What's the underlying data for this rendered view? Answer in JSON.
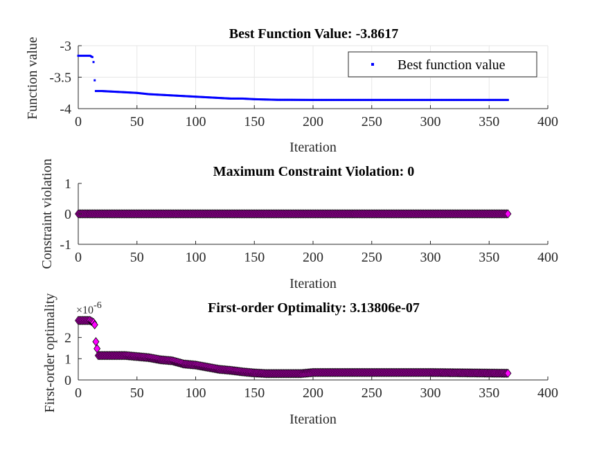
{
  "chart_data": [
    {
      "type": "scatter",
      "title": "Best Function Value: -3.8617",
      "xlabel": "Iteration",
      "ylabel": "Function value",
      "xlim": [
        0,
        400
      ],
      "ylim": [
        -4,
        -3
      ],
      "xticks": [
        "0",
        "50",
        "100",
        "150",
        "200",
        "250",
        "300",
        "350",
        "400"
      ],
      "yticks": [
        "-4",
        "-3.5",
        "-3"
      ],
      "grid": true,
      "legend": {
        "position": "top-right",
        "entries": [
          "Best function value"
        ]
      },
      "marker": "point",
      "series_color": "#0000ff",
      "series": [
        {
          "name": "Best function value",
          "points": [
            [
              0,
              -3.16
            ],
            [
              10,
              -3.16
            ],
            [
              12,
              -3.18
            ],
            [
              13,
              -3.26
            ],
            [
              14,
              -3.55
            ],
            [
              15,
              -3.72
            ],
            [
              20,
              -3.72
            ],
            [
              30,
              -3.73
            ],
            [
              40,
              -3.74
            ],
            [
              50,
              -3.75
            ],
            [
              60,
              -3.77
            ],
            [
              70,
              -3.78
            ],
            [
              80,
              -3.79
            ],
            [
              90,
              -3.8
            ],
            [
              100,
              -3.81
            ],
            [
              110,
              -3.82
            ],
            [
              120,
              -3.83
            ],
            [
              130,
              -3.84
            ],
            [
              140,
              -3.84
            ],
            [
              150,
              -3.85
            ],
            [
              160,
              -3.855
            ],
            [
              170,
              -3.86
            ],
            [
              180,
              -3.86
            ],
            [
              190,
              -3.861
            ],
            [
              200,
              -3.8617
            ],
            [
              250,
              -3.8617
            ],
            [
              300,
              -3.8617
            ],
            [
              366,
              -3.8617
            ]
          ]
        }
      ]
    },
    {
      "type": "scatter",
      "title": "Maximum Constraint Violation: 0",
      "xlabel": "Iteration",
      "ylabel": "Constraint violation",
      "xlim": [
        0,
        400
      ],
      "ylim": [
        -1,
        1
      ],
      "xticks": [
        "0",
        "50",
        "100",
        "150",
        "200",
        "250",
        "300",
        "350",
        "400"
      ],
      "yticks": [
        "-1",
        "0",
        "1"
      ],
      "grid": false,
      "marker": "diamond",
      "marker_fill": "#ff00ff",
      "marker_edge": "#000000",
      "series": [
        {
          "points": [
            [
              0,
              0
            ],
            [
              366,
              0
            ]
          ]
        }
      ]
    },
    {
      "type": "scatter",
      "title": "First-order Optimality: 3.13806e-07",
      "xlabel": "Iteration",
      "ylabel": "First-order optimality",
      "xlim": [
        0,
        400
      ],
      "ylim": [
        0,
        2.9
      ],
      "yscale_note": "×10^-6",
      "exponent_base": "×10",
      "exponent_power": "-6",
      "xticks": [
        "0",
        "50",
        "100",
        "150",
        "200",
        "250",
        "300",
        "350",
        "400"
      ],
      "yticks": [
        "0",
        "1",
        "2"
      ],
      "grid": false,
      "marker": "diamond",
      "marker_fill": "#ff00ff",
      "marker_edge": "#000000",
      "series": [
        {
          "points": [
            [
              0,
              2.8
            ],
            [
              10,
              2.8
            ],
            [
              13,
              2.7
            ],
            [
              14,
              2.6
            ],
            [
              15,
              1.8
            ],
            [
              17,
              1.15
            ],
            [
              30,
              1.15
            ],
            [
              40,
              1.15
            ],
            [
              50,
              1.1
            ],
            [
              60,
              1.05
            ],
            [
              70,
              0.95
            ],
            [
              80,
              0.9
            ],
            [
              90,
              0.75
            ],
            [
              100,
              0.7
            ],
            [
              110,
              0.6
            ],
            [
              120,
              0.5
            ],
            [
              130,
              0.45
            ],
            [
              140,
              0.38
            ],
            [
              150,
              0.33
            ],
            [
              160,
              0.3
            ],
            [
              170,
              0.3
            ],
            [
              180,
              0.3
            ],
            [
              190,
              0.3
            ],
            [
              200,
              0.35
            ],
            [
              250,
              0.35
            ],
            [
              300,
              0.35
            ],
            [
              366,
              0.314
            ]
          ]
        }
      ]
    }
  ]
}
